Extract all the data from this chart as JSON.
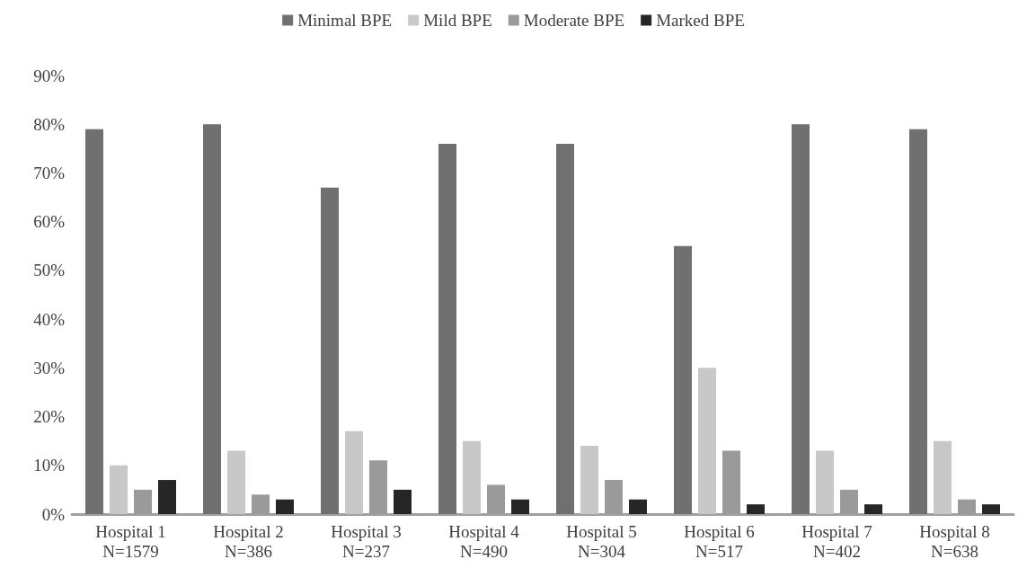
{
  "chart_data": {
    "type": "bar",
    "categories": [
      "Hospital 1\nN=1579",
      "Hospital 2\nN=386",
      "Hospital 3\nN=237",
      "Hospital 4\nN=490",
      "Hospital 5\nN=304",
      "Hospital 6\nN=517",
      "Hospital 7\nN=402",
      "Hospital 8\nN=638"
    ],
    "series": [
      {
        "name": "Minimal BPE",
        "color": "#707070",
        "values": [
          79,
          80,
          67,
          76,
          76,
          55,
          80,
          79
        ]
      },
      {
        "name": "Mild BPE",
        "color": "#c8c8c8",
        "values": [
          10,
          13,
          17,
          15,
          14,
          30,
          13,
          15
        ]
      },
      {
        "name": "Moderate BPE",
        "color": "#9a9a9a",
        "values": [
          5,
          4,
          11,
          6,
          7,
          13,
          5,
          3
        ]
      },
      {
        "name": "Marked BPE",
        "color": "#262626",
        "values": [
          7,
          3,
          5,
          3,
          3,
          2,
          2,
          2
        ]
      }
    ],
    "ylim": [
      0,
      90
    ],
    "yticks": [
      {
        "value": 0,
        "label": "0%"
      },
      {
        "value": 10,
        "label": "10%"
      },
      {
        "value": 20,
        "label": "20%"
      },
      {
        "value": 30,
        "label": "30%"
      },
      {
        "value": 40,
        "label": "40%"
      },
      {
        "value": 50,
        "label": "50%"
      },
      {
        "value": 60,
        "label": "60%"
      },
      {
        "value": 70,
        "label": "70%"
      },
      {
        "value": 80,
        "label": "80%"
      },
      {
        "value": 90,
        "label": "90%"
      }
    ],
    "grid": false,
    "legend": "top"
  }
}
